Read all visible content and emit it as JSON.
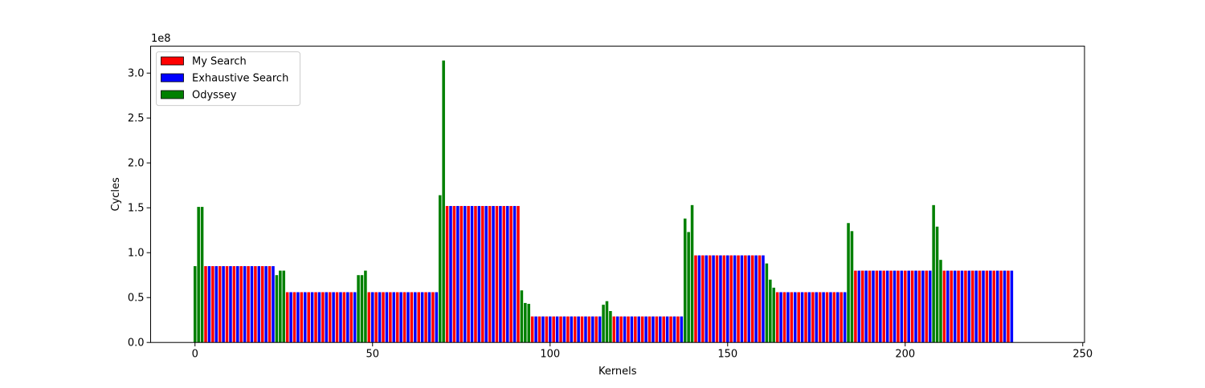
{
  "colors": {
    "my_search": "#ff0000",
    "exhaustive_search": "#0000ff",
    "odyssey": "#008000",
    "axis": "#000000",
    "legend_border": "#cccccc"
  },
  "chart_data": {
    "type": "bar",
    "xlabel": "Kernels",
    "ylabel": "Cycles",
    "y_scale_label": "1e8",
    "xlim": [
      -12.5,
      250.5
    ],
    "ylim": [
      0,
      3.3
    ],
    "y_unit_multiplier": 100000000,
    "bar_width": 0.8,
    "grid": false,
    "legend_position": "upper-left",
    "x_ticks": [
      0,
      50,
      100,
      150,
      200,
      250
    ],
    "x_tick_labels": [
      "0",
      "50",
      "100",
      "150",
      "200",
      "250"
    ],
    "y_ticks": [
      0,
      0.5,
      1.0,
      1.5,
      2.0,
      2.5,
      3.0
    ],
    "y_tick_labels": [
      "0.0",
      "0.5",
      "1.0",
      "1.5",
      "2.0",
      "2.5",
      "3.0"
    ],
    "legend": [
      {
        "label": "My Search",
        "series": "my_search"
      },
      {
        "label": "Exhaustive Search",
        "series": "exhaustive_search"
      },
      {
        "label": "Odyssey",
        "series": "odyssey"
      }
    ],
    "groups": [
      {
        "odyssey": [
          0.85,
          1.51,
          1.51
        ],
        "search_length": 20,
        "search_value": 0.85
      },
      {
        "odyssey": [
          0.75,
          0.8,
          0.8
        ],
        "search_length": 20,
        "search_value": 0.56
      },
      {
        "odyssey": [
          0.75,
          0.75,
          0.8
        ],
        "search_length": 20,
        "search_value": 0.56
      },
      {
        "odyssey": [
          1.64,
          3.14
        ],
        "search_length": 21,
        "search_value": 1.52
      },
      {
        "odyssey": [
          0.58,
          0.44,
          0.43
        ],
        "search_length": 20,
        "search_value": 0.29
      },
      {
        "odyssey": [
          0.42,
          0.46,
          0.35
        ],
        "search_length": 20,
        "search_value": 0.29
      },
      {
        "odyssey": [
          1.38,
          1.23,
          1.53
        ],
        "search_length": 20,
        "search_value": 0.97
      },
      {
        "odyssey": [
          0.88,
          0.7,
          0.61
        ],
        "search_length": 20,
        "search_value": 0.56
      },
      {
        "odyssey": [
          1.33,
          1.24
        ],
        "search_length": 22,
        "search_value": 0.8
      },
      {
        "odyssey": [
          1.53,
          1.29,
          0.92
        ],
        "search_length": 20,
        "search_value": 0.8
      }
    ]
  }
}
